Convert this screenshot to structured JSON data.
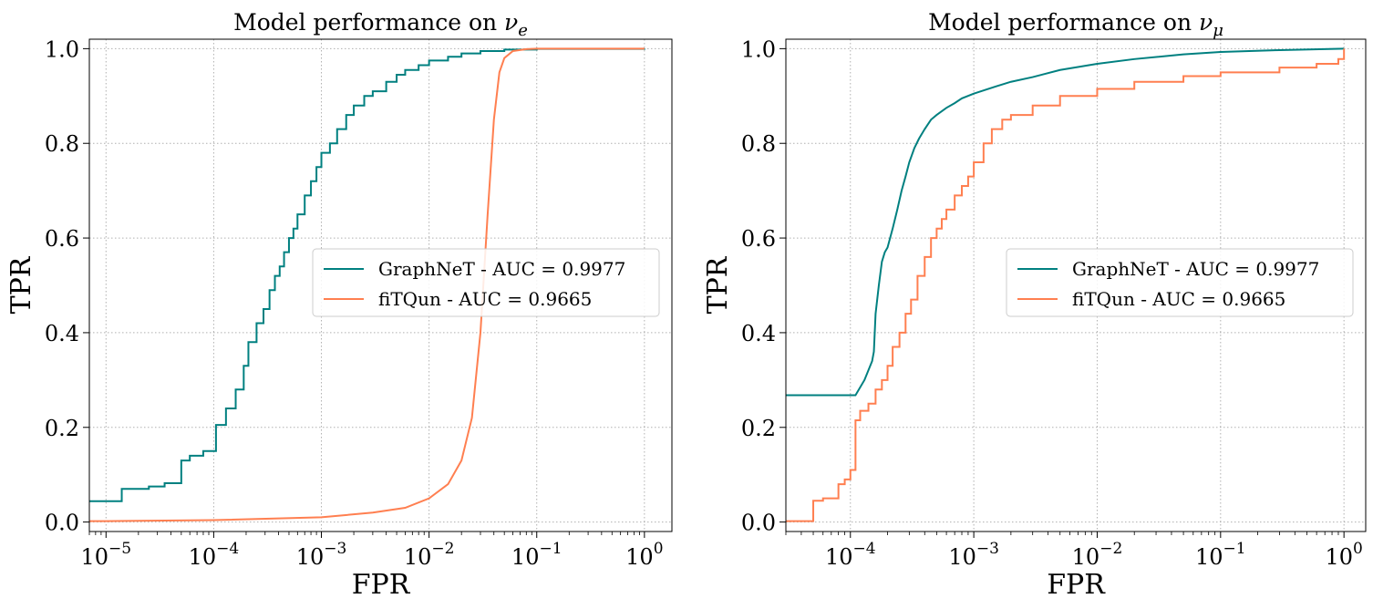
{
  "chart_data": [
    {
      "type": "line",
      "title_main": "Model performance on ",
      "title_symbol": "ν",
      "title_subscript": "e",
      "xlabel": "FPR",
      "ylabel": "TPR",
      "xscale": "log",
      "xlim": [
        7e-06,
        1.8
      ],
      "ylim": [
        -0.02,
        1.02
      ],
      "grid": true,
      "legend_position": "center-right",
      "x_ticks": [
        {
          "base": "10",
          "exp": "−5"
        },
        {
          "base": "10",
          "exp": "−4"
        },
        {
          "base": "10",
          "exp": "−3"
        },
        {
          "base": "10",
          "exp": "−2"
        },
        {
          "base": "10",
          "exp": "−1"
        },
        {
          "base": "10",
          "exp": "0"
        }
      ],
      "x_tick_values": [
        1e-05,
        0.0001,
        0.001,
        0.01,
        0.1,
        1
      ],
      "y_ticks": [
        "0.0",
        "0.2",
        "0.4",
        "0.6",
        "0.8",
        "1.0"
      ],
      "y_tick_values": [
        0,
        0.2,
        0.4,
        0.6,
        0.8,
        1.0
      ],
      "series": [
        {
          "name": "GraphNeT - AUC = 0.9977",
          "color": "#008080",
          "step": true,
          "x": [
            7e-06,
            1.4e-05,
            2.5e-05,
            3.5e-05,
            5e-05,
            6e-05,
            8e-05,
            0.000105,
            0.00013,
            0.00016,
            0.00019,
            0.00021,
            0.00025,
            0.00029,
            0.00033,
            0.00037,
            0.00041,
            0.00045,
            0.0005,
            0.00055,
            0.0006,
            0.0007,
            0.0008,
            0.0009,
            0.001,
            0.0012,
            0.0014,
            0.0017,
            0.002,
            0.0025,
            0.003,
            0.004,
            0.005,
            0.006,
            0.008,
            0.01,
            0.015,
            0.02,
            0.03,
            0.05,
            0.1,
            1
          ],
          "y": [
            0.044,
            0.07,
            0.075,
            0.082,
            0.13,
            0.14,
            0.15,
            0.205,
            0.24,
            0.28,
            0.33,
            0.38,
            0.42,
            0.45,
            0.49,
            0.52,
            0.54,
            0.57,
            0.6,
            0.62,
            0.65,
            0.69,
            0.72,
            0.75,
            0.78,
            0.8,
            0.83,
            0.86,
            0.88,
            0.9,
            0.91,
            0.93,
            0.945,
            0.955,
            0.965,
            0.975,
            0.983,
            0.99,
            0.995,
            0.998,
            0.9995,
            1.0
          ]
        },
        {
          "name": "fiTQun - AUC = 0.9665",
          "color": "#ff7f50",
          "step": false,
          "x": [
            7e-06,
            1e-05,
            0.0001,
            0.001,
            0.003,
            0.006,
            0.01,
            0.015,
            0.02,
            0.025,
            0.03,
            0.035,
            0.04,
            0.045,
            0.05,
            0.06,
            0.08,
            0.1,
            1
          ],
          "y": [
            0.002,
            0.002,
            0.004,
            0.01,
            0.02,
            0.03,
            0.05,
            0.08,
            0.13,
            0.22,
            0.4,
            0.65,
            0.85,
            0.95,
            0.98,
            0.995,
            0.999,
            1.0,
            1.0
          ]
        }
      ]
    },
    {
      "type": "line",
      "title_main": "Model performance on ",
      "title_symbol": "ν",
      "title_subscript": "μ",
      "xlabel": "FPR",
      "ylabel": "TPR",
      "xscale": "log",
      "xlim": [
        3e-05,
        1.5
      ],
      "ylim": [
        -0.02,
        1.02
      ],
      "grid": true,
      "legend_position": "center-right",
      "x_ticks": [
        {
          "base": "10",
          "exp": "−4"
        },
        {
          "base": "10",
          "exp": "−3"
        },
        {
          "base": "10",
          "exp": "−2"
        },
        {
          "base": "10",
          "exp": "−1"
        },
        {
          "base": "10",
          "exp": "0"
        }
      ],
      "x_tick_values": [
        0.0001,
        0.001,
        0.01,
        0.1,
        1
      ],
      "y_ticks": [
        "0.0",
        "0.2",
        "0.4",
        "0.6",
        "0.8",
        "1.0"
      ],
      "y_tick_values": [
        0,
        0.2,
        0.4,
        0.6,
        0.8,
        1.0
      ],
      "series": [
        {
          "name": "GraphNeT - AUC = 0.9977",
          "color": "#008080",
          "step": false,
          "x": [
            3e-05,
            0.00011,
            0.00013,
            0.00015,
            0.000155,
            0.00016,
            0.00017,
            0.00018,
            0.00019,
            0.0002,
            0.00022,
            0.00024,
            0.00026,
            0.00028,
            0.0003,
            0.00033,
            0.00036,
            0.0004,
            0.00045,
            0.0005,
            0.0006,
            0.0007,
            0.0008,
            0.001,
            0.0015,
            0.002,
            0.003,
            0.005,
            0.01,
            0.02,
            0.05,
            0.1,
            0.3,
            1
          ],
          "y": [
            0.268,
            0.268,
            0.3,
            0.34,
            0.36,
            0.44,
            0.5,
            0.55,
            0.57,
            0.58,
            0.62,
            0.66,
            0.7,
            0.73,
            0.76,
            0.79,
            0.81,
            0.83,
            0.85,
            0.86,
            0.875,
            0.885,
            0.895,
            0.905,
            0.92,
            0.93,
            0.94,
            0.955,
            0.968,
            0.978,
            0.988,
            0.993,
            0.997,
            1.0
          ]
        },
        {
          "name": "fiTQun - AUC = 0.9665",
          "color": "#ff7f50",
          "step": true,
          "x": [
            3e-05,
            5e-05,
            6e-05,
            8e-05,
            9e-05,
            0.0001,
            0.00011,
            0.00012,
            0.00014,
            0.00016,
            0.00018,
            0.0002,
            0.00022,
            0.00025,
            0.00028,
            0.00031,
            0.00035,
            0.0004,
            0.00045,
            0.0005,
            0.00055,
            0.0006,
            0.0007,
            0.0008,
            0.0009,
            0.001,
            0.0012,
            0.0014,
            0.0017,
            0.002,
            0.003,
            0.005,
            0.01,
            0.02,
            0.05,
            0.1,
            0.3,
            0.6,
            0.9,
            1
          ],
          "y": [
            0.002,
            0.045,
            0.05,
            0.08,
            0.09,
            0.11,
            0.215,
            0.235,
            0.25,
            0.28,
            0.3,
            0.33,
            0.37,
            0.4,
            0.44,
            0.47,
            0.52,
            0.56,
            0.6,
            0.62,
            0.64,
            0.66,
            0.69,
            0.71,
            0.73,
            0.76,
            0.8,
            0.83,
            0.85,
            0.86,
            0.88,
            0.9,
            0.915,
            0.93,
            0.942,
            0.95,
            0.96,
            0.968,
            0.978,
            1.0
          ]
        }
      ]
    }
  ]
}
